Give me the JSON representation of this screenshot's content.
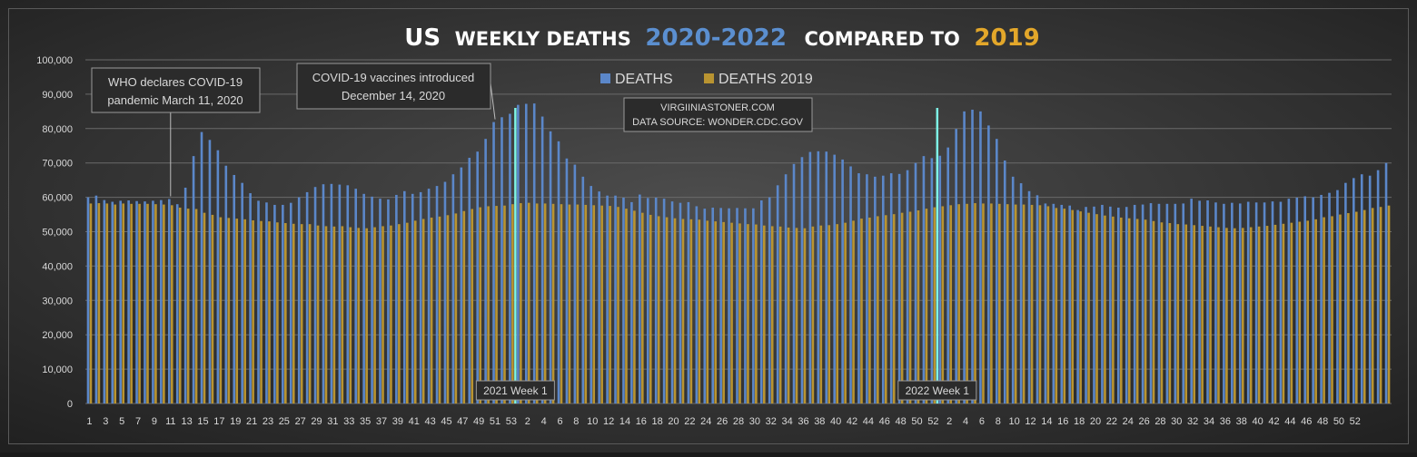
{
  "colors": {
    "background_center": "#4d4d4d",
    "background_edge": "#1f1f1f",
    "deaths": "#5b87c9",
    "deaths_2019": "#b99431",
    "title_white": "#ffffff",
    "title_blue": "#5b8fd0",
    "title_gold": "#e3a72a",
    "marker": "#7ef5e6",
    "grid": "#6a6a6a",
    "text": "#d9d9d9"
  },
  "chart_data": {
    "type": "bar",
    "title": {
      "part1": "US",
      "part2": "WEEKLY DEATHS",
      "part3": "2020-2022",
      "part4": "COMPARED TO",
      "part5": "2019"
    },
    "legend": {
      "position": "top-center",
      "items": [
        "DEATHS",
        "DEATHS 2019"
      ]
    },
    "source_line1": "VIRGIINIASTONER.COM",
    "source_line2": "DATA SOURCE: WONDER.CDC.GOV",
    "ylim": [
      0,
      100000
    ],
    "yticks": [
      0,
      10000,
      20000,
      30000,
      40000,
      50000,
      60000,
      70000,
      80000,
      90000,
      100000
    ],
    "ytick_labels": [
      "0",
      "10,000",
      "20,000",
      "30,000",
      "40,000",
      "50,000",
      "60,000",
      "70,000",
      "80,000",
      "90,000",
      "100,000"
    ],
    "week_labels": [
      "1",
      "2",
      "3",
      "4",
      "5",
      "6",
      "7",
      "8",
      "9",
      "10",
      "11",
      "12",
      "13",
      "14",
      "15",
      "16",
      "17",
      "18",
      "19",
      "20",
      "21",
      "22",
      "23",
      "24",
      "25",
      "26",
      "27",
      "28",
      "29",
      "30",
      "31",
      "32",
      "33",
      "34",
      "35",
      "36",
      "37",
      "38",
      "39",
      "40",
      "41",
      "42",
      "43",
      "44",
      "45",
      "46",
      "47",
      "48",
      "49",
      "50",
      "51",
      "52",
      "53",
      "1",
      "2",
      "3",
      "4",
      "5",
      "6",
      "7",
      "8",
      "9",
      "10",
      "11",
      "12",
      "13",
      "14",
      "15",
      "16",
      "17",
      "18",
      "19",
      "20",
      "21",
      "22",
      "23",
      "24",
      "25",
      "26",
      "27",
      "28",
      "29",
      "30",
      "31",
      "32",
      "33",
      "34",
      "35",
      "36",
      "37",
      "38",
      "39",
      "40",
      "41",
      "42",
      "43",
      "44",
      "45",
      "46",
      "47",
      "48",
      "49",
      "50",
      "51",
      "52",
      "1",
      "2",
      "3",
      "4",
      "5",
      "6",
      "7",
      "8",
      "9",
      "10",
      "11",
      "12",
      "13",
      "14",
      "15",
      "16",
      "17",
      "18",
      "19",
      "20",
      "21",
      "22",
      "23",
      "24",
      "25",
      "26",
      "27",
      "28",
      "29",
      "30",
      "31",
      "32",
      "33",
      "34",
      "35",
      "36",
      "37",
      "38",
      "39",
      "40",
      "41",
      "42",
      "43",
      "44",
      "45",
      "46",
      "47",
      "48",
      "49",
      "50",
      "51",
      "52"
    ],
    "series": [
      {
        "name": "DEATHS",
        "values": [
          60000,
          60500,
          59200,
          58700,
          59000,
          59100,
          58900,
          58800,
          59000,
          59200,
          59500,
          58000,
          62800,
          72000,
          79000,
          76700,
          73700,
          69200,
          66500,
          64200,
          61200,
          59000,
          58500,
          57800,
          57800,
          58400,
          60000,
          61500,
          63000,
          63800,
          63900,
          63700,
          63500,
          62500,
          61000,
          60200,
          59600,
          59400,
          60700,
          61800,
          61000,
          61500,
          62500,
          63300,
          64500,
          66700,
          68700,
          71500,
          73300,
          77000,
          81900,
          83300,
          84300,
          86900,
          87200,
          87300,
          83500,
          79200,
          76300,
          71300,
          69500,
          66000,
          63300,
          61700,
          60500,
          60500,
          59900,
          58600,
          60800,
          59800,
          59900,
          59600,
          58800,
          58400,
          58600,
          57400,
          56700,
          57000,
          56900,
          56800,
          56900,
          56800,
          56800,
          59100,
          60000,
          63500,
          66700,
          69700,
          71700,
          73200,
          73400,
          73300,
          72400,
          71000,
          69000,
          67000,
          66700,
          66000,
          66300,
          67000,
          66800,
          67900,
          70000,
          72000,
          71400,
          72100,
          74500,
          79900,
          85000,
          85500,
          85000,
          80900,
          77000,
          70700,
          66000,
          64100,
          61800,
          60600,
          58200,
          58100,
          57800,
          57600,
          56300,
          57200,
          57300,
          57800,
          57300,
          57000,
          57200,
          57800,
          57900,
          58300,
          58100,
          58100,
          58100,
          58200,
          59600,
          59000,
          59100,
          58500,
          58100,
          58400,
          58200,
          58700,
          58500,
          58500,
          58800,
          58700,
          59600,
          59900,
          60300,
          60000,
          60700,
          61300,
          62100,
          64200,
          65600,
          66700,
          66300,
          67900,
          70000
        ]
      },
      {
        "name": "DEATHS 2019",
        "values": [
          58200,
          58300,
          58200,
          57900,
          58200,
          58100,
          58100,
          58100,
          58000,
          57900,
          57700,
          57000,
          56700,
          56600,
          55500,
          54900,
          54200,
          54000,
          53800,
          53600,
          53300,
          53100,
          53000,
          52700,
          52500,
          52300,
          52200,
          52200,
          51800,
          51600,
          51500,
          51600,
          51300,
          51100,
          51000,
          51300,
          51600,
          51800,
          52200,
          52600,
          53200,
          53700,
          54100,
          54400,
          54800,
          55300,
          56000,
          56600,
          57100,
          57400,
          57500,
          57600,
          58000,
          58300,
          58400,
          58200,
          58200,
          58100,
          58000,
          57900,
          57900,
          57800,
          57700,
          57600,
          57500,
          57200,
          56700,
          56100,
          55500,
          54900,
          54500,
          54200,
          53900,
          53700,
          53600,
          53500,
          53200,
          53000,
          52800,
          52600,
          52400,
          52200,
          52100,
          51800,
          51600,
          51500,
          51200,
          51100,
          51000,
          51500,
          51800,
          51900,
          52200,
          52600,
          53200,
          53800,
          54100,
          54500,
          54800,
          55100,
          55500,
          55800,
          56200,
          56700,
          57100,
          57400,
          57700,
          58000,
          58100,
          58300,
          58200,
          58200,
          58100,
          58000,
          57900,
          57900,
          57800,
          57700,
          57400,
          56900,
          56700,
          56300,
          55900,
          55500,
          55100,
          54700,
          54400,
          54100,
          53900,
          53700,
          53500,
          53100,
          52700,
          52500,
          52200,
          52100,
          51900,
          51700,
          51500,
          51300,
          51100,
          51000,
          51100,
          51300,
          51500,
          51700,
          52000,
          52300,
          52600,
          52900,
          53200,
          53600,
          54200,
          54500,
          55000,
          55400,
          55800,
          56300,
          56900,
          57200,
          57600,
          58000
        ]
      }
    ],
    "markers": [
      {
        "index": 53,
        "label": "2021 Week 1"
      },
      {
        "index": 105,
        "label": "2022 Week 1"
      }
    ],
    "annotations": [
      {
        "line1": "WHO declares COVID-19",
        "line2": "pandemic March 11, 2020",
        "target_index": 10
      },
      {
        "line1": "COVID-19 vaccines introduced",
        "line2": "December 14, 2020",
        "target_index": 50
      }
    ]
  }
}
